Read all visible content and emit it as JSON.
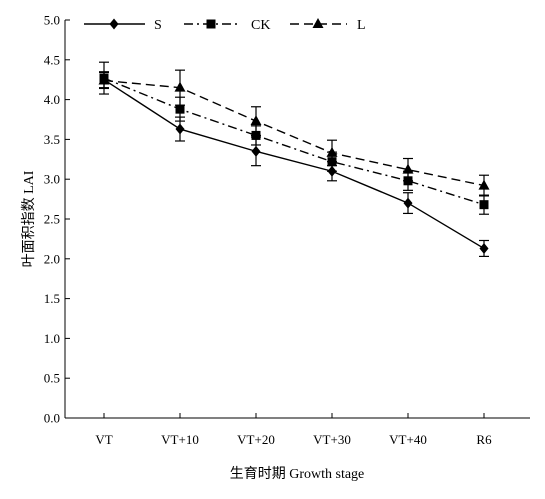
{
  "chart_data": {
    "type": "line",
    "categories": [
      "VT",
      "VT+10",
      "VT+20",
      "VT+30",
      "VT+40",
      "R6"
    ],
    "xlabel": "生育时期 Growth stage",
    "ylabel": "叶面积指数 LAI",
    "ylim": [
      0,
      5.0
    ],
    "yticks": [
      "0.0",
      "0.5",
      "1.0",
      "1.5",
      "2.0",
      "2.5",
      "3.0",
      "3.5",
      "4.0",
      "4.5",
      "5.0"
    ],
    "grid": false,
    "legend_position": "top",
    "series": [
      {
        "name": "S",
        "marker": "diamond",
        "line": "solid",
        "values": [
          4.25,
          3.63,
          3.35,
          3.1,
          2.7,
          2.13
        ],
        "errors": [
          0.1,
          0.15,
          0.18,
          0.12,
          0.13,
          0.1
        ]
      },
      {
        "name": "CK",
        "marker": "square",
        "line": "dash-dot",
        "values": [
          4.27,
          3.88,
          3.55,
          3.22,
          2.98,
          2.68
        ],
        "errors": [
          0.2,
          0.15,
          0.12,
          0.12,
          0.12,
          0.12
        ]
      },
      {
        "name": "L",
        "marker": "triangle",
        "line": "dashed",
        "values": [
          4.24,
          4.15,
          3.73,
          3.33,
          3.12,
          2.92
        ],
        "errors": [
          0.1,
          0.22,
          0.18,
          0.16,
          0.14,
          0.13
        ]
      }
    ]
  }
}
